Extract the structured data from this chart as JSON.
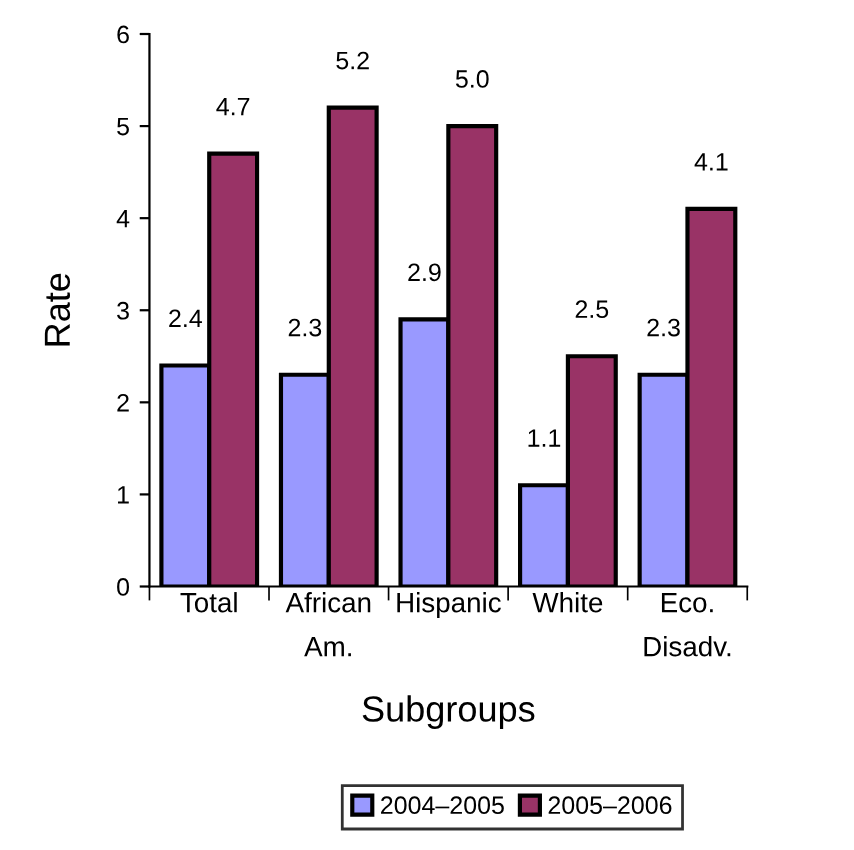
{
  "chart_data": {
    "type": "bar",
    "xlabel": "Subgroups",
    "ylabel": "Rate",
    "categories": [
      "Total",
      "African\nAm.",
      "Hispanic",
      "White",
      "Eco.\nDisadv."
    ],
    "series": [
      {
        "name": "2004–2005",
        "color": "#9999ff",
        "values": [
          2.4,
          2.3,
          2.9,
          1.1,
          2.3
        ],
        "value_labels": [
          "2.4",
          "2.3",
          "2.9",
          "1.1",
          "2.3"
        ]
      },
      {
        "name": "2005–2006",
        "color": "#993366",
        "values": [
          4.7,
          5.2,
          5.0,
          2.5,
          4.1
        ],
        "value_labels": [
          "4.7",
          "5.2",
          "5.0",
          "2.5",
          "4.1"
        ]
      }
    ],
    "ylim": [
      0,
      6
    ],
    "yticks": [
      0,
      1,
      2,
      3,
      4,
      5,
      6
    ],
    "grid": false,
    "legend": "bottom"
  }
}
